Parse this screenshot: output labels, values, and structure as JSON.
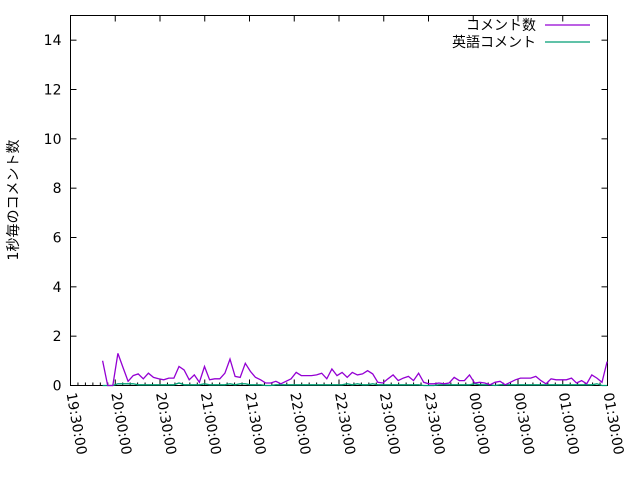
{
  "chart_data": {
    "type": "line",
    "title": "",
    "xlabel": "",
    "ylabel": "1秒毎のコメント数",
    "ylim": [
      0,
      15
    ],
    "yticks": [
      "0",
      "2",
      "4",
      "6",
      "8",
      "10",
      "12",
      "14"
    ],
    "xlim": [
      "19:30:00",
      "01:30:00"
    ],
    "xticks": [
      "19:30:00",
      "20:00:00",
      "20:30:00",
      "21:00:00",
      "21:30:00",
      "22:00:00",
      "22:30:00",
      "23:00:00",
      "23:30:00",
      "00:00:00",
      "00:30:00",
      "01:00:00",
      "01:30:00"
    ],
    "grid": false,
    "legend_position": "top-right",
    "x_start": "19:51:30",
    "sample_interval_seconds": 205,
    "series": [
      {
        "name": "コメント数",
        "color": "#9400d3",
        "values": [
          1.0,
          0,
          0,
          1.3,
          0.73,
          0.17,
          0.4,
          0.47,
          0.27,
          0.5,
          0.33,
          0.27,
          0.23,
          0.3,
          0.3,
          0.77,
          0.63,
          0.23,
          0.43,
          0.13,
          0.77,
          0.23,
          0.27,
          0.27,
          0.5,
          1.07,
          0.37,
          0.33,
          0.9,
          0.57,
          0.33,
          0.23,
          0.1,
          0.1,
          0.17,
          0.07,
          0.17,
          0.27,
          0.53,
          0.4,
          0.4,
          0.4,
          0.43,
          0.5,
          0.27,
          0.67,
          0.4,
          0.53,
          0.33,
          0.53,
          0.43,
          0.47,
          0.6,
          0.47,
          0.13,
          0.1,
          0.27,
          0.43,
          0.2,
          0.3,
          0.37,
          0.2,
          0.5,
          0.13,
          0.07,
          0.07,
          0.1,
          0.07,
          0.1,
          0.33,
          0.2,
          0.2,
          0.43,
          0.1,
          0.13,
          0.1,
          0.03,
          0.13,
          0.17,
          0.03,
          0.13,
          0.23,
          0.3,
          0.3,
          0.3,
          0.37,
          0.2,
          0.07,
          0.27,
          0.23,
          0.23,
          0.23,
          0.3,
          0.1,
          0.2,
          0.07,
          0.43,
          0.3,
          0.13,
          0.97
        ]
      },
      {
        "name": "英語コメント",
        "color": "#009e73",
        "values": [
          0,
          0,
          0,
          0.07,
          0.07,
          0.07,
          0.07,
          0.03,
          0.03,
          0.03,
          0.03,
          0.03,
          0.03,
          0.03,
          0.03,
          0.1,
          0.03,
          0.03,
          0.03,
          0.03,
          0.07,
          0.03,
          0.03,
          0.03,
          0.03,
          0.07,
          0.03,
          0.07,
          0.07,
          0.03,
          0.03,
          0.03,
          0,
          0,
          0.03,
          0.03,
          0.03,
          0.03,
          0.03,
          0.03,
          0.03,
          0.03,
          0.03,
          0.03,
          0.03,
          0.03,
          0.03,
          0.03,
          0.07,
          0.03,
          0.07,
          0.03,
          0.03,
          0.07,
          0.03,
          0.03,
          0.03,
          0.03,
          0.03,
          0.03,
          0.03,
          0.03,
          0.03,
          0,
          0,
          0,
          0.03,
          0.03,
          0.03,
          0.03,
          0.03,
          0.03,
          0.03,
          0.07,
          0.03,
          0.03,
          0.03,
          0,
          0.03,
          0.03,
          0.03,
          0.03,
          0.03,
          0.03,
          0.03,
          0.03,
          0.03,
          0.03,
          0.03,
          0.03,
          0.03,
          0.03,
          0.03,
          0.03,
          0.03,
          0.03,
          0.03,
          0.07,
          0,
          0
        ]
      }
    ]
  }
}
